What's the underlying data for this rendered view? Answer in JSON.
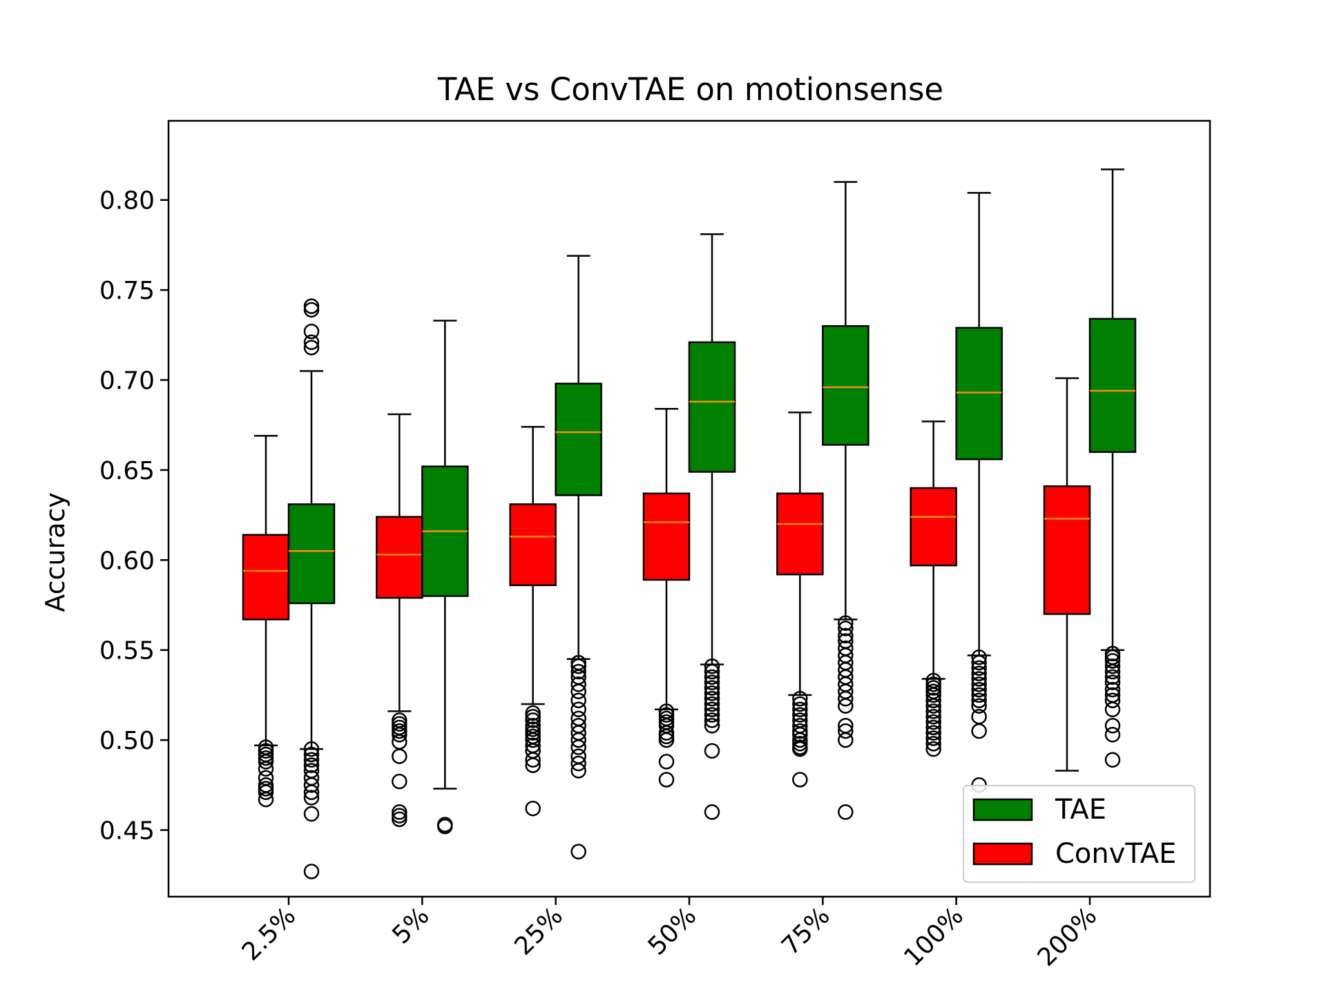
{
  "chart_data": {
    "type": "box",
    "title": "TAE vs ConvTAE on motionsense",
    "xlabel": "",
    "ylabel": "Accuracy",
    "ylim": [
      0.413,
      0.844
    ],
    "yticks": [
      0.45,
      0.5,
      0.55,
      0.6,
      0.65,
      0.7,
      0.75,
      0.8
    ],
    "ytick_labels": [
      "0.45",
      "0.50",
      "0.55",
      "0.60",
      "0.65",
      "0.70",
      "0.75",
      "0.80"
    ],
    "categories": [
      "2.5%",
      "5%",
      "25%",
      "50%",
      "75%",
      "100%",
      "200%"
    ],
    "legend": {
      "position": "lower right",
      "entries": [
        "TAE",
        "ConvTAE"
      ]
    },
    "series": [
      {
        "name": "ConvTAE",
        "color": "#ff0000",
        "median_color": "#ff8c00",
        "boxes": [
          {
            "whislo": 0.497,
            "q1": 0.567,
            "med": 0.594,
            "q3": 0.614,
            "whishi": 0.669,
            "fliers": [
              0.496,
              0.494,
              0.492,
              0.49,
              0.488,
              0.484,
              0.479,
              0.475,
              0.473,
              0.471,
              0.467
            ]
          },
          {
            "whislo": 0.516,
            "q1": 0.579,
            "med": 0.603,
            "q3": 0.624,
            "whishi": 0.681,
            "fliers": [
              0.511,
              0.509,
              0.507,
              0.505,
              0.503,
              0.499,
              0.491,
              0.477,
              0.46,
              0.458,
              0.456
            ]
          },
          {
            "whislo": 0.52,
            "q1": 0.586,
            "med": 0.613,
            "q3": 0.631,
            "whishi": 0.674,
            "fliers": [
              0.515,
              0.513,
              0.511,
              0.508,
              0.506,
              0.504,
              0.502,
              0.5,
              0.497,
              0.494,
              0.489,
              0.486,
              0.462
            ]
          },
          {
            "whislo": 0.517,
            "q1": 0.589,
            "med": 0.621,
            "q3": 0.637,
            "whishi": 0.684,
            "fliers": [
              0.516,
              0.514,
              0.512,
              0.51,
              0.508,
              0.504,
              0.502,
              0.5,
              0.488,
              0.478
            ]
          },
          {
            "whislo": 0.525,
            "q1": 0.592,
            "med": 0.62,
            "q3": 0.637,
            "whishi": 0.682,
            "fliers": [
              0.523,
              0.52,
              0.517,
              0.514,
              0.511,
              0.508,
              0.505,
              0.503,
              0.5,
              0.498,
              0.496,
              0.495,
              0.478
            ]
          },
          {
            "whislo": 0.534,
            "q1": 0.597,
            "med": 0.624,
            "q3": 0.64,
            "whishi": 0.677,
            "fliers": [
              0.533,
              0.531,
              0.529,
              0.527,
              0.525,
              0.522,
              0.519,
              0.516,
              0.513,
              0.51,
              0.507,
              0.504,
              0.501,
              0.498,
              0.495
            ]
          },
          {
            "whislo": 0.483,
            "q1": 0.57,
            "med": 0.623,
            "q3": 0.641,
            "whishi": 0.701,
            "fliers": []
          }
        ]
      },
      {
        "name": "TAE",
        "color": "#008000",
        "median_color": "#ff8c00",
        "boxes": [
          {
            "whislo": 0.495,
            "q1": 0.576,
            "med": 0.605,
            "q3": 0.631,
            "whishi": 0.705,
            "fliers": [
              0.741,
              0.739,
              0.727,
              0.721,
              0.718,
              0.495,
              0.492,
              0.489,
              0.486,
              0.483,
              0.479,
              0.475,
              0.471,
              0.468,
              0.459,
              0.427
            ]
          },
          {
            "whislo": 0.473,
            "q1": 0.58,
            "med": 0.616,
            "q3": 0.652,
            "whishi": 0.733,
            "fliers": [
              0.453,
              0.452
            ]
          },
          {
            "whislo": 0.545,
            "q1": 0.636,
            "med": 0.671,
            "q3": 0.698,
            "whishi": 0.769,
            "fliers": [
              0.543,
              0.541,
              0.538,
              0.535,
              0.531,
              0.527,
              0.522,
              0.517,
              0.512,
              0.508,
              0.504,
              0.5,
              0.496,
              0.491,
              0.487,
              0.483,
              0.438
            ]
          },
          {
            "whislo": 0.542,
            "q1": 0.649,
            "med": 0.688,
            "q3": 0.721,
            "whishi": 0.781,
            "fliers": [
              0.541,
              0.538,
              0.535,
              0.532,
              0.529,
              0.526,
              0.523,
              0.52,
              0.517,
              0.514,
              0.511,
              0.508,
              0.494,
              0.46
            ]
          },
          {
            "whislo": 0.567,
            "q1": 0.664,
            "med": 0.696,
            "q3": 0.73,
            "whishi": 0.81,
            "fliers": [
              0.565,
              0.562,
              0.558,
              0.555,
              0.551,
              0.547,
              0.543,
              0.539,
              0.535,
              0.531,
              0.527,
              0.523,
              0.519,
              0.508,
              0.505,
              0.5,
              0.46
            ]
          },
          {
            "whislo": 0.547,
            "q1": 0.656,
            "med": 0.693,
            "q3": 0.729,
            "whishi": 0.804,
            "fliers": [
              0.546,
              0.543,
              0.54,
              0.537,
              0.534,
              0.531,
              0.528,
              0.525,
              0.522,
              0.519,
              0.513,
              0.505,
              0.475
            ]
          },
          {
            "whislo": 0.55,
            "q1": 0.66,
            "med": 0.694,
            "q3": 0.734,
            "whishi": 0.817,
            "fliers": [
              0.548,
              0.546,
              0.544,
              0.541,
              0.538,
              0.535,
              0.532,
              0.528,
              0.525,
              0.522,
              0.517,
              0.508,
              0.503,
              0.489
            ]
          }
        ]
      }
    ]
  }
}
